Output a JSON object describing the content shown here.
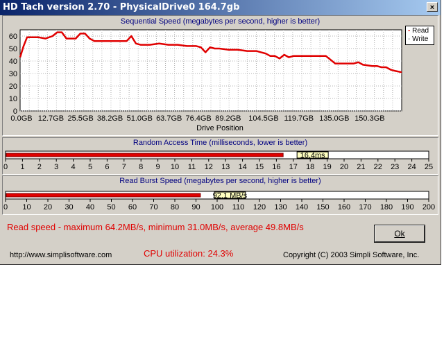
{
  "window": {
    "title": "HD Tach version 2.70 - PhysicalDrive0 164.7gb",
    "close_label": "×"
  },
  "seq": {
    "title": "Sequential Speed (megabytes per second, higher is better)",
    "xlabel": "Drive Position",
    "legend": {
      "read": "Read",
      "write": "Write"
    }
  },
  "random": {
    "title": "Random Access Time (milliseconds, lower is better)",
    "value_label": "16,4ms",
    "value": 16.4,
    "max": 25
  },
  "burst": {
    "title": "Read Burst Speed (megabytes per second, higher is better)",
    "value_label": "92.1 MB/s",
    "value": 92.1,
    "max": 200
  },
  "stats": {
    "read_speed": "Read speed - maximum 64.2MB/s, minimum 31.0MB/s, average 49.8MB/s",
    "cpu": "CPU utilization: 24.3%",
    "url": "http://www.simplisoftware.com",
    "copyright": "Copyright (C) 2003 Simpli Software, Inc."
  },
  "ok_label": "Ok",
  "colors": {
    "read": "#e00000",
    "stat_text": "#e00000",
    "panel_title": "#000080"
  },
  "chart_data": [
    {
      "type": "line",
      "title": "Sequential Speed (megabytes per second, higher is better)",
      "xlabel": "Drive Position",
      "ylabel": "",
      "ylim": [
        0,
        65
      ],
      "xlim": [
        0,
        164.7
      ],
      "yticks": [
        0,
        10,
        20,
        30,
        40,
        50,
        60
      ],
      "xtick_labels": [
        "0.0GB",
        "12.7GB",
        "25.5GB",
        "38.2GB",
        "51.0GB",
        "63.7GB",
        "76.4GB",
        "89.2GB",
        "104.5GB",
        "119.7GB",
        "135.0GB",
        "150.3GB"
      ],
      "xtick_values": [
        0,
        12.7,
        25.5,
        38.2,
        51.0,
        63.7,
        76.4,
        89.2,
        104.5,
        119.7,
        135.0,
        150.3
      ],
      "grid": true,
      "legend": "top-right",
      "series": [
        {
          "name": "Read",
          "color": "#e00000",
          "x": [
            0,
            1.5,
            3,
            5,
            8,
            11,
            14,
            16,
            18,
            20,
            22,
            24,
            26,
            28,
            30,
            32,
            34,
            36,
            38,
            42,
            46,
            48,
            50,
            52,
            56,
            60,
            64,
            68,
            72,
            76,
            78,
            80,
            82,
            84,
            86,
            90,
            94,
            98,
            102,
            104,
            106,
            108,
            110,
            112,
            114,
            116,
            118,
            120,
            124,
            128,
            132,
            134,
            136,
            140,
            144,
            146,
            148,
            152,
            154,
            156,
            158,
            160,
            162,
            164.7
          ],
          "y": [
            43,
            52,
            59,
            59,
            59,
            58,
            60,
            63,
            63,
            58,
            58,
            58,
            62,
            62,
            58,
            56,
            56,
            56,
            56,
            56,
            56,
            60,
            54,
            53,
            53,
            54,
            53,
            53,
            52,
            52,
            51,
            47,
            51,
            50,
            50,
            49,
            49,
            48,
            48,
            47,
            46,
            44,
            44,
            42,
            45,
            43,
            44,
            44,
            44,
            44,
            44,
            41,
            38,
            38,
            38,
            39,
            37,
            36,
            36,
            35,
            35,
            33,
            32,
            31
          ]
        },
        {
          "name": "Write",
          "color": "#808080",
          "x": [],
          "y": []
        }
      ]
    },
    {
      "type": "bar",
      "title": "Random Access Time (milliseconds, lower is better)",
      "xlim": [
        0,
        25
      ],
      "xticks": [
        0,
        1,
        2,
        3,
        4,
        5,
        6,
        7,
        8,
        9,
        10,
        11,
        12,
        13,
        14,
        15,
        16,
        17,
        18,
        19,
        20,
        21,
        22,
        23,
        24,
        25
      ],
      "values": [
        16.4
      ],
      "value_label": "16,4ms"
    },
    {
      "type": "bar",
      "title": "Read Burst Speed (megabytes per second, higher is better)",
      "xlim": [
        0,
        200
      ],
      "xticks": [
        0,
        10,
        20,
        30,
        40,
        50,
        60,
        70,
        80,
        90,
        100,
        110,
        120,
        130,
        140,
        150,
        160,
        170,
        180,
        190,
        200
      ],
      "values": [
        92.1
      ],
      "value_label": "92.1 MB/s"
    }
  ]
}
